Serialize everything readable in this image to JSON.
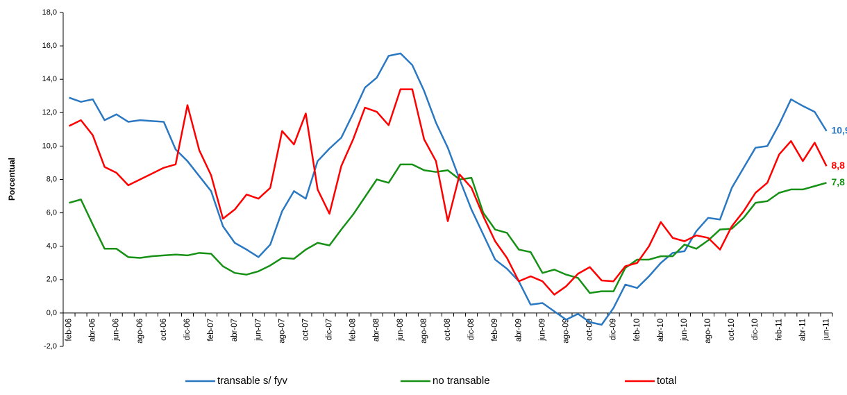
{
  "chart_data": {
    "type": "line",
    "ylabel": "Porcentual",
    "categories": [
      "feb-06",
      null,
      "abr-06",
      null,
      "jun-06",
      null,
      "ago-06",
      null,
      "oct-06",
      null,
      "dic-06",
      null,
      "feb-07",
      null,
      "abr-07",
      null,
      "jun-07",
      null,
      "ago-07",
      null,
      "oct-07",
      null,
      "dic-07",
      null,
      "feb-08",
      null,
      "abr-08",
      null,
      "jun-08",
      null,
      "ago-08",
      null,
      "oct-08",
      null,
      "dic-08",
      null,
      "feb-09",
      null,
      "abr-09",
      null,
      "jun-09",
      null,
      "ago-09",
      null,
      "oct-09",
      null,
      "dic-09",
      null,
      "feb-10",
      null,
      "abr-10",
      null,
      "jun-10",
      null,
      "ago-10",
      null,
      "oct-10",
      null,
      "dic-10",
      null,
      "feb-11",
      null,
      "abr-11",
      null,
      "jun-11"
    ],
    "series": [
      {
        "name": "transable s/ fyv",
        "color": "#2a78c2",
        "values": [
          12.9,
          12.65,
          12.8,
          11.55,
          11.9,
          11.45,
          11.55,
          11.5,
          11.45,
          9.8,
          9.1,
          8.2,
          7.3,
          5.2,
          4.2,
          3.8,
          3.35,
          4.1,
          6.1,
          7.3,
          6.85,
          9.1,
          9.85,
          10.5,
          11.95,
          13.5,
          14.1,
          15.4,
          15.55,
          14.85,
          13.3,
          11.4,
          9.9,
          8.0,
          6.2,
          4.7,
          3.2,
          2.65,
          1.9,
          0.5,
          0.6,
          0.1,
          -0.4,
          -0.05,
          -0.55,
          -0.7,
          0.3,
          1.7,
          1.5,
          2.2,
          3.0,
          3.6,
          3.7,
          4.9,
          5.7,
          5.6,
          7.5,
          8.7,
          9.9,
          10.0,
          11.3,
          12.8,
          12.4,
          12.05,
          10.9
        ],
        "value_labels": [
          null,
          null,
          null,
          null,
          null,
          null,
          null,
          null,
          null,
          null,
          null,
          null,
          null,
          null,
          null,
          null,
          null,
          null,
          null,
          null,
          null,
          null,
          null,
          null,
          null,
          null,
          null,
          null,
          null,
          null,
          null,
          null,
          null,
          null,
          null,
          null,
          null,
          null,
          null,
          null,
          null,
          null,
          null,
          null,
          null,
          null,
          null,
          null,
          null,
          null,
          null,
          null,
          null,
          null,
          null,
          null,
          null,
          null,
          null,
          null,
          null,
          null,
          null,
          null,
          "10,9"
        ]
      },
      {
        "name": "no transable",
        "color": "#169116",
        "values": [
          6.6,
          6.8,
          5.3,
          3.85,
          3.85,
          3.35,
          3.3,
          3.4,
          3.45,
          3.5,
          3.45,
          3.6,
          3.55,
          2.8,
          2.4,
          2.3,
          2.5,
          2.85,
          3.3,
          3.25,
          3.8,
          4.2,
          4.05,
          5.0,
          5.9,
          6.95,
          8.0,
          7.8,
          8.9,
          8.9,
          8.55,
          8.45,
          8.55,
          8.0,
          8.1,
          6.0,
          5.0,
          4.8,
          3.8,
          3.65,
          2.4,
          2.6,
          2.3,
          2.1,
          1.2,
          1.3,
          1.3,
          2.7,
          3.2,
          3.2,
          3.4,
          3.4,
          4.1,
          3.85,
          4.35,
          5.0,
          5.05,
          5.7,
          6.6,
          6.7,
          7.2,
          7.4,
          7.4,
          7.6,
          7.8
        ],
        "value_labels": [
          null,
          null,
          null,
          null,
          null,
          null,
          null,
          null,
          null,
          null,
          null,
          null,
          null,
          null,
          null,
          null,
          null,
          null,
          null,
          null,
          null,
          null,
          null,
          null,
          null,
          null,
          null,
          null,
          null,
          null,
          null,
          null,
          null,
          null,
          null,
          null,
          null,
          null,
          null,
          null,
          null,
          null,
          null,
          null,
          null,
          null,
          null,
          null,
          null,
          null,
          null,
          null,
          null,
          null,
          null,
          null,
          null,
          null,
          null,
          null,
          null,
          null,
          null,
          null,
          "7,8"
        ]
      },
      {
        "name": "total",
        "color": "#ff0000",
        "values": [
          11.2,
          11.55,
          10.65,
          8.75,
          8.4,
          7.65,
          8.0,
          8.35,
          8.7,
          8.9,
          12.45,
          9.75,
          8.25,
          5.65,
          6.2,
          7.1,
          6.85,
          7.5,
          10.9,
          10.1,
          11.95,
          7.4,
          5.95,
          8.8,
          10.4,
          12.3,
          12.05,
          11.25,
          13.4,
          13.4,
          10.4,
          9.1,
          5.5,
          8.3,
          7.5,
          5.8,
          4.3,
          3.3,
          1.9,
          2.2,
          1.9,
          1.1,
          1.6,
          2.35,
          2.75,
          1.95,
          1.9,
          2.8,
          3.0,
          4.0,
          5.45,
          4.5,
          4.3,
          4.65,
          4.5,
          3.8,
          5.2,
          6.1,
          7.2,
          7.8,
          9.5,
          10.3,
          9.1,
          10.2,
          8.8
        ],
        "value_labels": [
          null,
          null,
          null,
          null,
          null,
          null,
          null,
          null,
          null,
          null,
          null,
          null,
          null,
          null,
          null,
          null,
          null,
          null,
          null,
          null,
          null,
          null,
          null,
          null,
          null,
          null,
          null,
          null,
          null,
          null,
          null,
          null,
          null,
          null,
          null,
          null,
          null,
          null,
          null,
          null,
          null,
          null,
          null,
          null,
          null,
          null,
          null,
          null,
          null,
          null,
          null,
          null,
          null,
          null,
          null,
          null,
          null,
          null,
          null,
          null,
          null,
          null,
          null,
          null,
          "8,8"
        ]
      }
    ],
    "ylim": [
      -2,
      18
    ],
    "yticks": [
      {
        "value": -2,
        "label": "-2,0"
      },
      {
        "value": 0,
        "label": "0,0"
      },
      {
        "value": 2,
        "label": "2,0"
      },
      {
        "value": 4,
        "label": "4,0"
      },
      {
        "value": 6,
        "label": "6,0"
      },
      {
        "value": 8,
        "label": "8,0"
      },
      {
        "value": 10,
        "label": "10,0"
      },
      {
        "value": 12,
        "label": "12,0"
      },
      {
        "value": 14,
        "label": "14,0"
      },
      {
        "value": 16,
        "label": "16,0"
      },
      {
        "value": 18,
        "label": "18,0"
      }
    ],
    "grid": false,
    "legend": "bottom"
  }
}
